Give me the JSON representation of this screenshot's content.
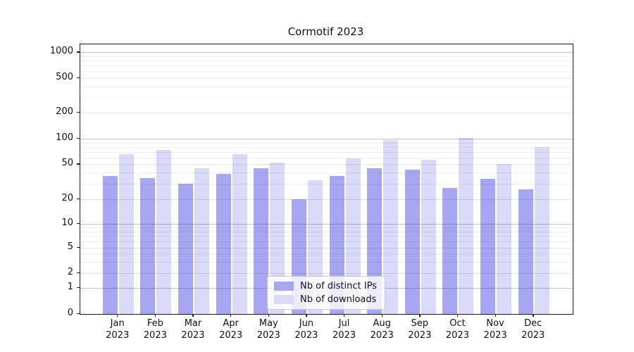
{
  "chart_data": {
    "type": "bar",
    "title": "Cormotif 2023",
    "categories": [
      "Jan 2023",
      "Feb 2023",
      "Mar 2023",
      "Apr 2023",
      "May 2023",
      "Jun 2023",
      "Jul 2023",
      "Aug 2023",
      "Sep 2023",
      "Oct 2023",
      "Nov 2023",
      "Dec 2023"
    ],
    "x_tick_line1": [
      "Jan",
      "Feb",
      "Mar",
      "Apr",
      "May",
      "Jun",
      "Jul",
      "Aug",
      "Sep",
      "Oct",
      "Nov",
      "Dec"
    ],
    "x_tick_line2": "2023",
    "series": [
      {
        "name": "Nb of distinct IPs",
        "color": "#a6a6f3",
        "values": [
          37,
          35,
          30,
          39,
          45,
          20,
          37,
          45,
          43,
          27,
          34,
          26
        ]
      },
      {
        "name": "Nb of downloads",
        "color": "#d9d9f8",
        "values": [
          66,
          74,
          45,
          66,
          52,
          33,
          59,
          96,
          56,
          101,
          50,
          79
        ]
      }
    ],
    "y_axis": {
      "scale": "symlog",
      "tick_labels": [
        "0",
        "1",
        "2",
        "5",
        "10",
        "20",
        "50",
        "100",
        "200",
        "500",
        "1000"
      ],
      "tick_values": [
        0,
        1,
        2,
        5,
        10,
        20,
        50,
        100,
        200,
        500,
        1000
      ]
    },
    "legend": {
      "position": "lower-center",
      "entries": [
        "Nb of distinct IPs",
        "Nb of downloads"
      ]
    },
    "grid": true
  },
  "colors": {
    "background": "#ffffff",
    "bar_distinct_ips": "#a6a6f3",
    "bar_downloads": "#d9d9f8",
    "axis": "#1a1a1a",
    "grid_major": "#b0b0b0",
    "grid_minor": "#ececec",
    "legend_border": "#cbcbcb"
  }
}
